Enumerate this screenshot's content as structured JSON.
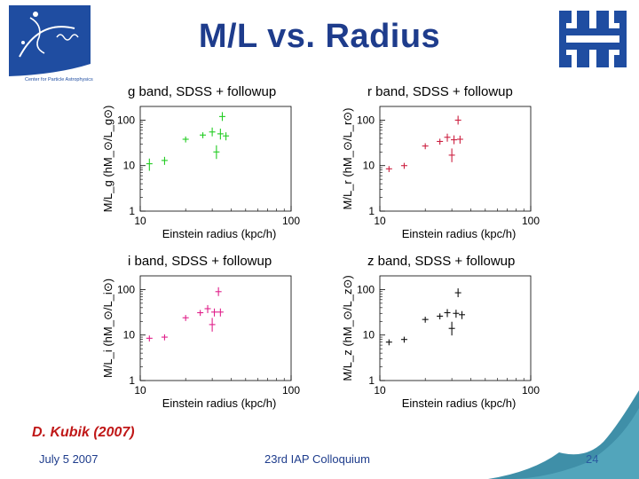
{
  "slide": {
    "title": "M/L vs. Radius",
    "left_logo_text": "Center for Particle Astrophysics",
    "credit": "D. Kubik (2007)",
    "footer_date": "July 5 2007",
    "footer_event": "23rd IAP Colloquium",
    "page_number": "24",
    "colors": {
      "title": "#1e3c8c",
      "credit": "#c01818",
      "logo_blue": "#1f4da1",
      "corner_teal": "#3f8fa8"
    }
  },
  "chart_data": [
    {
      "type": "scatter",
      "title": "g band, SDSS + followup",
      "xlabel": "Einstein radius (kpc/h)",
      "ylabel": "M/L_g (hM_⊙/L_g⊙)",
      "xscale": "log",
      "yscale": "log",
      "xlim": [
        10,
        100
      ],
      "ylim": [
        1,
        200
      ],
      "xticks": [
        "10",
        "100"
      ],
      "yticks": [
        "1",
        "10",
        "100"
      ],
      "color": "#22cc22",
      "points": [
        {
          "x": 11.5,
          "y": 11,
          "yerr": [
            0.7,
            1.3
          ]
        },
        {
          "x": 14.5,
          "y": 13,
          "yerr": [
            0.8,
            1.2
          ]
        },
        {
          "x": 20,
          "y": 38,
          "yerr": [
            0.85,
            1.15
          ]
        },
        {
          "x": 26,
          "y": 47,
          "yerr": [
            0.85,
            1.15
          ]
        },
        {
          "x": 30,
          "y": 55,
          "yerr": [
            0.8,
            1.25
          ]
        },
        {
          "x": 32,
          "y": 20,
          "yerr": [
            0.7,
            1.4
          ]
        },
        {
          "x": 34,
          "y": 50,
          "yerr": [
            0.75,
            1.3
          ]
        },
        {
          "x": 37,
          "y": 45,
          "yerr": [
            0.8,
            1.2
          ]
        },
        {
          "x": 35,
          "y": 120,
          "yerr": [
            0.8,
            1.25
          ]
        }
      ]
    },
    {
      "type": "scatter",
      "title": "r band, SDSS + followup",
      "xlabel": "Einstein radius (kpc/h)",
      "ylabel": "M/L_r (hM_⊙/L_r⊙)",
      "xscale": "log",
      "yscale": "log",
      "xlim": [
        10,
        100
      ],
      "ylim": [
        1,
        200
      ],
      "xticks": [
        "10",
        "100"
      ],
      "yticks": [
        "1",
        "10",
        "100"
      ],
      "color": "#cc2040",
      "points": [
        {
          "x": 11.5,
          "y": 8.5,
          "yerr": [
            0.85,
            1.15
          ]
        },
        {
          "x": 14.5,
          "y": 10,
          "yerr": [
            0.85,
            1.15
          ]
        },
        {
          "x": 20,
          "y": 27,
          "yerr": [
            0.85,
            1.15
          ]
        },
        {
          "x": 25,
          "y": 34,
          "yerr": [
            0.85,
            1.15
          ]
        },
        {
          "x": 28,
          "y": 42,
          "yerr": [
            0.8,
            1.2
          ]
        },
        {
          "x": 30,
          "y": 17,
          "yerr": [
            0.7,
            1.4
          ]
        },
        {
          "x": 31,
          "y": 37,
          "yerr": [
            0.8,
            1.25
          ]
        },
        {
          "x": 34,
          "y": 38,
          "yerr": [
            0.8,
            1.2
          ]
        },
        {
          "x": 33,
          "y": 100,
          "yerr": [
            0.8,
            1.25
          ]
        }
      ]
    },
    {
      "type": "scatter",
      "title": "i band, SDSS + followup",
      "xlabel": "Einstein radius (kpc/h)",
      "ylabel": "M/L_i (hM_⊙/L_i⊙)",
      "xscale": "log",
      "yscale": "log",
      "xlim": [
        10,
        100
      ],
      "ylim": [
        1,
        200
      ],
      "xticks": [
        "10",
        "100"
      ],
      "yticks": [
        "1",
        "10",
        "100"
      ],
      "color": "#e0208a",
      "points": [
        {
          "x": 11.5,
          "y": 8.5,
          "yerr": [
            0.85,
            1.15
          ]
        },
        {
          "x": 14.5,
          "y": 9,
          "yerr": [
            0.85,
            1.15
          ]
        },
        {
          "x": 20,
          "y": 24,
          "yerr": [
            0.85,
            1.15
          ]
        },
        {
          "x": 25,
          "y": 31,
          "yerr": [
            0.85,
            1.15
          ]
        },
        {
          "x": 28,
          "y": 38,
          "yerr": [
            0.8,
            1.2
          ]
        },
        {
          "x": 30,
          "y": 17,
          "yerr": [
            0.7,
            1.4
          ]
        },
        {
          "x": 31,
          "y": 32,
          "yerr": [
            0.8,
            1.2
          ]
        },
        {
          "x": 34,
          "y": 32,
          "yerr": [
            0.8,
            1.2
          ]
        },
        {
          "x": 33,
          "y": 90,
          "yerr": [
            0.8,
            1.25
          ]
        }
      ]
    },
    {
      "type": "scatter",
      "title": "z band, SDSS + followup",
      "xlabel": "Einstein radius (kpc/h)",
      "ylabel": "M/L_z (hM_⊙/L_z⊙)",
      "xscale": "log",
      "yscale": "log",
      "xlim": [
        10,
        100
      ],
      "ylim": [
        1,
        200
      ],
      "xticks": [
        "10",
        "100"
      ],
      "yticks": [
        "1",
        "10",
        "100"
      ],
      "color": "#111111",
      "points": [
        {
          "x": 11.5,
          "y": 7,
          "yerr": [
            0.85,
            1.15
          ]
        },
        {
          "x": 14.5,
          "y": 8,
          "yerr": [
            0.85,
            1.15
          ]
        },
        {
          "x": 20,
          "y": 22,
          "yerr": [
            0.85,
            1.15
          ]
        },
        {
          "x": 25,
          "y": 26,
          "yerr": [
            0.85,
            1.15
          ]
        },
        {
          "x": 28,
          "y": 31,
          "yerr": [
            0.8,
            1.2
          ]
        },
        {
          "x": 30,
          "y": 14,
          "yerr": [
            0.7,
            1.4
          ]
        },
        {
          "x": 32,
          "y": 30,
          "yerr": [
            0.8,
            1.2
          ]
        },
        {
          "x": 35,
          "y": 28,
          "yerr": [
            0.8,
            1.2
          ]
        },
        {
          "x": 33,
          "y": 85,
          "yerr": [
            0.8,
            1.25
          ]
        }
      ]
    }
  ]
}
